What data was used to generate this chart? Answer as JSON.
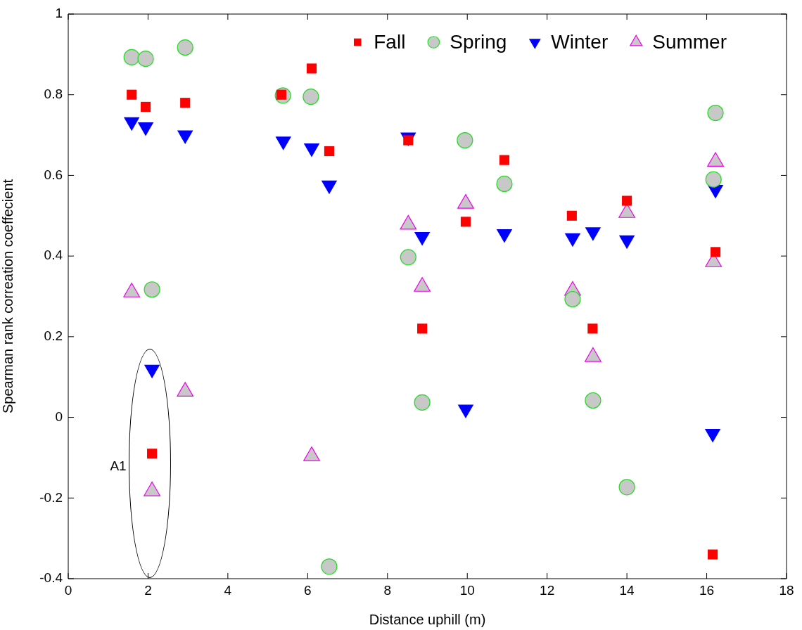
{
  "chart_data": {
    "type": "scatter",
    "xlabel": "Distance uphill (m)",
    "ylabel": "Spearman rank correation coeffecient",
    "xlim": [
      0,
      18
    ],
    "xticks": [
      0,
      2,
      4,
      6,
      8,
      10,
      12,
      14,
      16,
      18
    ],
    "ylim": [
      -0.4,
      1
    ],
    "yticks": [
      -0.4,
      -0.2,
      0,
      0.2,
      0.4,
      0.6,
      0.8,
      1
    ],
    "grid": false,
    "legend": "top right",
    "annotations": [
      "A1"
    ],
    "series": [
      {
        "name": "Fall",
        "color": "#ff0000",
        "marker": "square",
        "x": [
          1.59,
          1.94,
          2.1,
          2.93,
          5.34,
          6.1,
          6.54,
          8.52,
          8.87,
          9.96,
          10.93,
          12.62,
          13.14,
          14.0,
          16.22,
          16.15
        ],
        "values": [
          0.8,
          0.77,
          -0.09,
          0.78,
          0.8,
          0.865,
          0.66,
          0.687,
          0.22,
          0.485,
          0.638,
          0.5,
          0.22,
          0.537,
          0.41,
          -0.34
        ]
      },
      {
        "name": "Spring",
        "color": "#c8c8c8",
        "marker": "circle",
        "x": [
          1.59,
          1.94,
          2.1,
          2.93,
          5.38,
          6.08,
          6.54,
          8.52,
          8.87,
          9.94,
          10.93,
          12.64,
          13.15,
          14.0,
          16.22,
          16.17
        ],
        "values": [
          0.893,
          0.889,
          0.317,
          0.917,
          0.798,
          0.795,
          -0.37,
          0.397,
          0.037,
          0.687,
          0.579,
          0.293,
          0.042,
          -0.173,
          0.755,
          0.59
        ]
      },
      {
        "name": "Winter",
        "color": "#0000ff",
        "marker": "triangle-down",
        "x": [
          1.59,
          1.94,
          2.1,
          2.93,
          5.39,
          6.1,
          6.54,
          8.52,
          8.87,
          9.96,
          10.93,
          12.64,
          13.15,
          14.0,
          16.22,
          16.15
        ],
        "values": [
          0.733,
          0.72,
          0.119,
          0.7,
          0.685,
          0.668,
          0.576,
          0.695,
          0.448,
          0.02,
          0.455,
          0.445,
          0.46,
          0.44,
          0.565,
          -0.04
        ]
      },
      {
        "name": "Summer",
        "color": "#c8c8c8",
        "marker": "triangle",
        "x": [
          1.59,
          2.1,
          2.93,
          6.1,
          8.52,
          8.87,
          9.96,
          12.64,
          13.15,
          14.0,
          16.22,
          16.17
        ],
        "values": [
          0.31,
          -0.183,
          0.064,
          -0.096,
          0.478,
          0.324,
          0.53,
          0.314,
          0.15,
          0.507,
          0.634,
          0.385
        ]
      }
    ]
  }
}
